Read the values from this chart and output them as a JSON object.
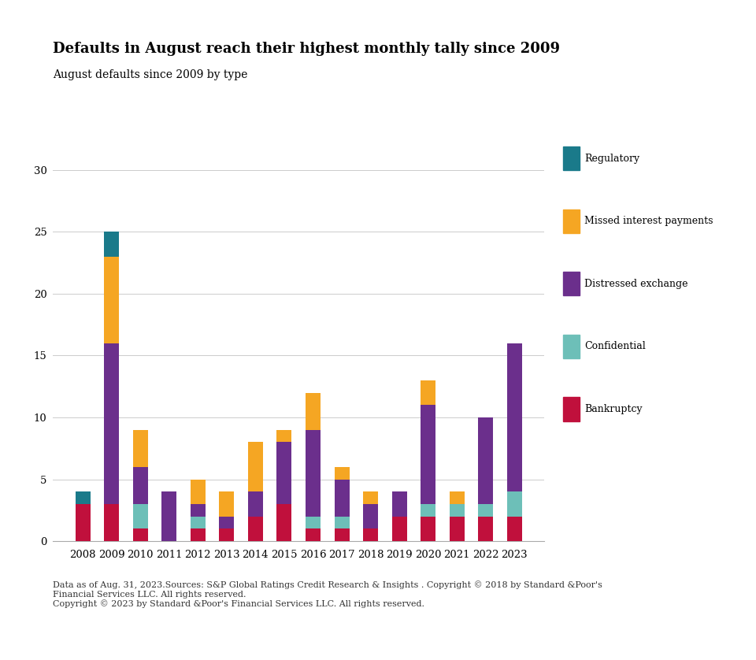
{
  "title": "Defaults in August reach their highest monthly tally since 2009",
  "subtitle": "August defaults since 2009 by type",
  "years": [
    "2008",
    "2009",
    "2010",
    "2011",
    "2012",
    "2013",
    "2014",
    "2015",
    "2016",
    "2017",
    "2018",
    "2019",
    "2020",
    "2021",
    "2022",
    "2023"
  ],
  "categories": [
    "Bankruptcy",
    "Confidential",
    "Distressed exchange",
    "Missed interest payments",
    "Regulatory"
  ],
  "colors": {
    "Bankruptcy": "#c0103c",
    "Confidential": "#6dbfb8",
    "Distressed exchange": "#6b2f8c",
    "Missed interest payments": "#f5a623",
    "Regulatory": "#1a7a8a"
  },
  "data": {
    "Bankruptcy": [
      3,
      3,
      1,
      0,
      1,
      1,
      2,
      3,
      1,
      1,
      1,
      2,
      2,
      2,
      2,
      2
    ],
    "Confidential": [
      0,
      0,
      2,
      0,
      1,
      0,
      0,
      0,
      1,
      1,
      0,
      0,
      1,
      1,
      1,
      2
    ],
    "Distressed exchange": [
      0,
      13,
      3,
      4,
      1,
      1,
      2,
      5,
      7,
      3,
      2,
      2,
      8,
      0,
      7,
      12
    ],
    "Missed interest payments": [
      0,
      7,
      3,
      0,
      2,
      2,
      4,
      1,
      3,
      1,
      1,
      0,
      2,
      1,
      0,
      0
    ],
    "Regulatory": [
      1,
      2,
      0,
      0,
      0,
      0,
      0,
      0,
      0,
      0,
      0,
      0,
      0,
      0,
      0,
      0
    ]
  },
  "ylim": [
    0,
    32
  ],
  "yticks": [
    0,
    5,
    10,
    15,
    20,
    25,
    30
  ],
  "footnote": "Data as of Aug. 31, 2023.Sources: S&P Global Ratings Credit Research & Insights . Copyright © 2018 by Standard &Poor's\nFinancial Services LLC. All rights reserved.\nCopyright © 2023 by Standard &Poor's Financial Services LLC. All rights reserved.",
  "background_color": "#ffffff",
  "title_fontsize": 13,
  "subtitle_fontsize": 10,
  "footnote_fontsize": 8,
  "tick_fontsize": 9.5
}
